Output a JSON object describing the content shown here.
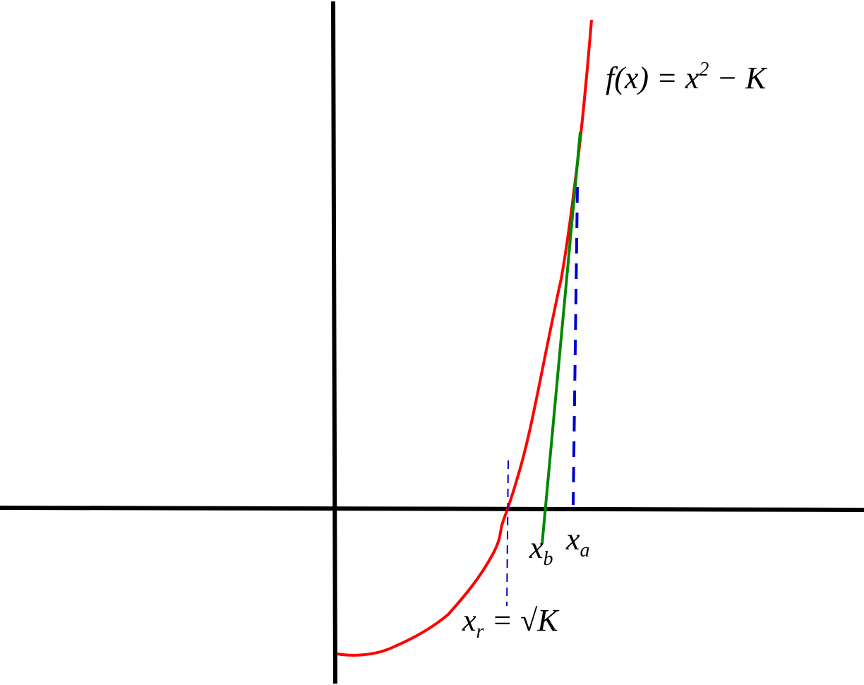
{
  "labels": {
    "function": {
      "base": "f(x) = x",
      "sup": "2",
      "tail": " − K"
    },
    "xb": {
      "base": "x",
      "sub": "b"
    },
    "xa": {
      "base": "x",
      "sub": "a"
    },
    "root": {
      "base": "x",
      "sub": "r",
      "tail": " = √K"
    }
  }
}
